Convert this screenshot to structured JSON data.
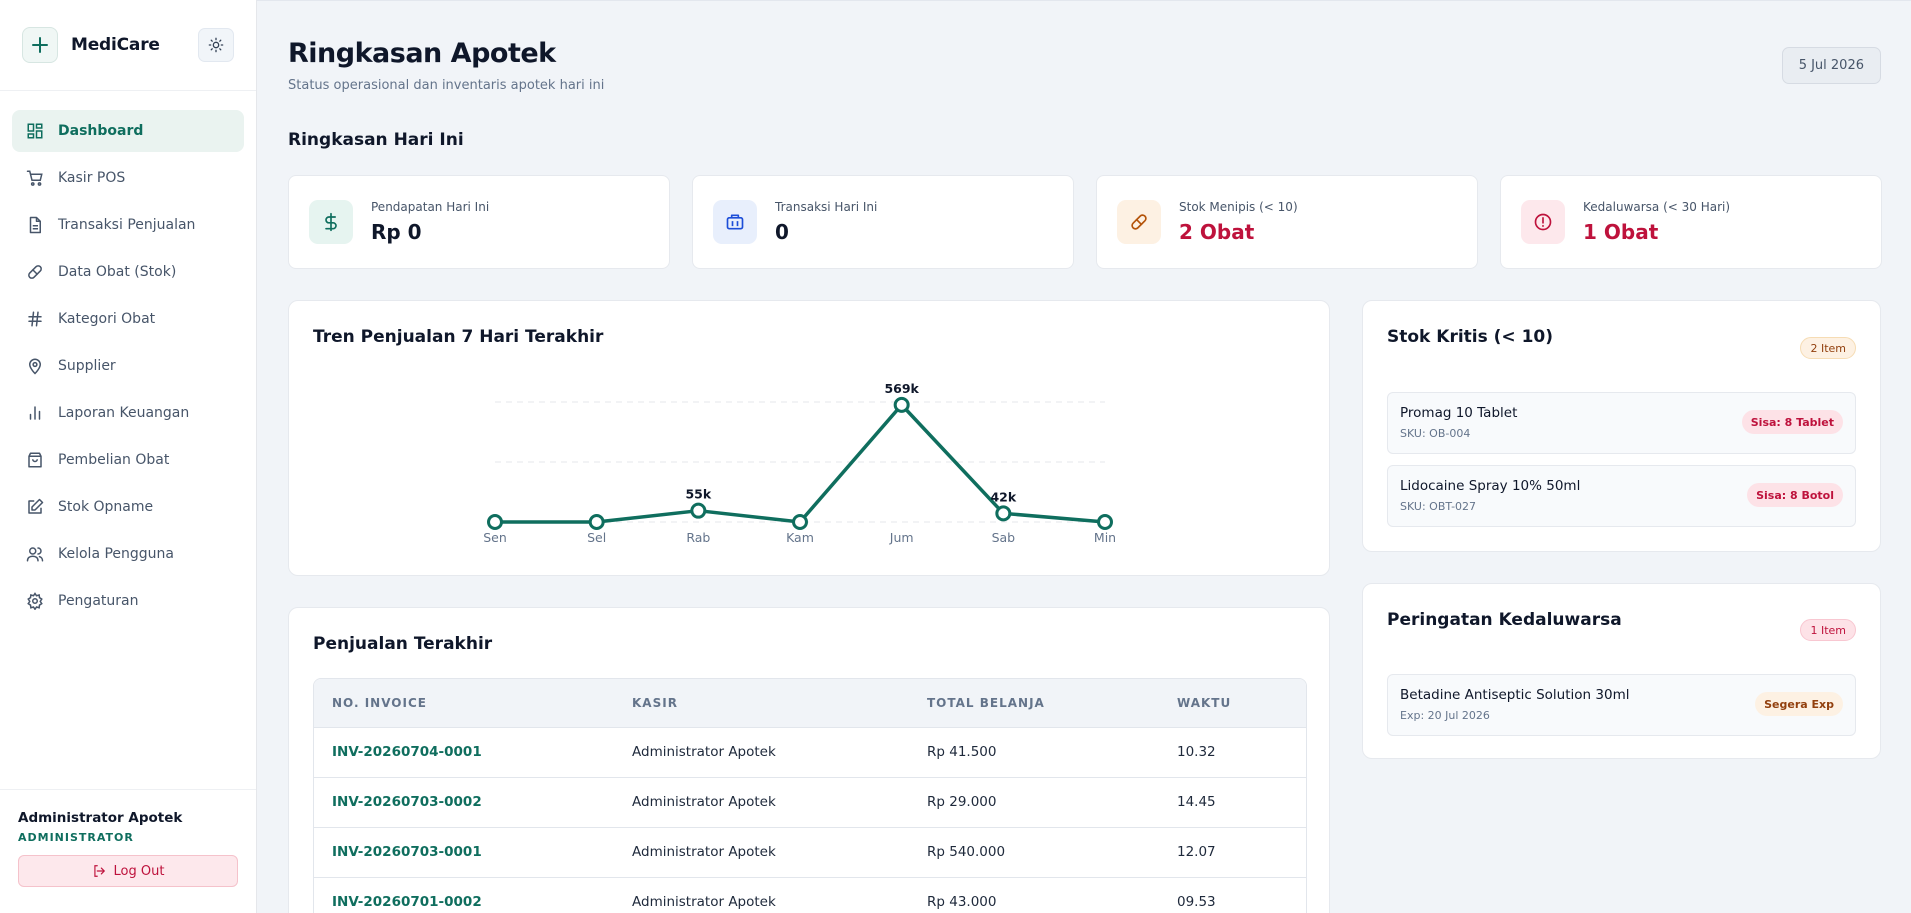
{
  "brand": {
    "name": "MediCare"
  },
  "nav": [
    {
      "label": "Dashboard",
      "icon": "dashboard-icon",
      "active": true
    },
    {
      "label": "Kasir POS",
      "icon": "cart-icon"
    },
    {
      "label": "Transaksi Penjualan",
      "icon": "document-icon"
    },
    {
      "label": "Data Obat (Stok)",
      "icon": "pill-icon"
    },
    {
      "label": "Kategori Obat",
      "icon": "hash-icon"
    },
    {
      "label": "Supplier",
      "icon": "location-icon"
    },
    {
      "label": "Laporan Keuangan",
      "icon": "bar-chart-icon"
    },
    {
      "label": "Pembelian Obat",
      "icon": "shopping-bag-icon"
    },
    {
      "label": "Stok Opname",
      "icon": "edit-icon"
    },
    {
      "label": "Kelola Pengguna",
      "icon": "users-icon"
    },
    {
      "label": "Pengaturan",
      "icon": "gear-icon"
    }
  ],
  "user": {
    "name": "Administrator Apotek",
    "role": "ADMINISTRATOR",
    "logout_label": "Log Out"
  },
  "header": {
    "title": "Ringkasan Apotek",
    "subtitle": "Status operasional dan inventaris apotek hari ini",
    "date": "5 Jul 2026"
  },
  "summary": {
    "title": "Ringkasan Hari Ini",
    "stats": [
      {
        "label": "Pendapatan Hari Ini",
        "value": "Rp 0",
        "icon": "dollar-icon",
        "color": "#0f6e5e"
      },
      {
        "label": "Transaksi Hari Ini",
        "value": "0",
        "icon": "briefcase-icon",
        "color": "#1d4ed8"
      },
      {
        "label": "Stok Menipis (< 10)",
        "value": "2 Obat",
        "icon": "pill-icon",
        "color": "#be123c"
      },
      {
        "label": "Kedaluwarsa (< 30 Hari)",
        "value": "1 Obat",
        "icon": "alert-icon",
        "color": "#be123c"
      }
    ]
  },
  "chart": {
    "title": "Tren Penjualan 7 Hari Terakhir"
  },
  "chart_data": {
    "type": "line",
    "categories": [
      "Sen",
      "Sel",
      "Rab",
      "Kam",
      "Jum",
      "Sab",
      "Min"
    ],
    "values": [
      0,
      0,
      55000,
      0,
      569000,
      42000,
      0
    ],
    "data_labels": [
      "",
      "",
      "55k",
      "",
      "569k",
      "42k",
      ""
    ],
    "ylim": [
      0,
      600000
    ],
    "grid": true,
    "color": "#0f6e5e"
  },
  "critical_stock": {
    "title": "Stok Kritis (< 10)",
    "badge": "2 Item",
    "items": [
      {
        "name": "Promag 10 Tablet",
        "sku": "SKU: OB-004",
        "remaining": "Sisa: 8 Tablet"
      },
      {
        "name": "Lidocaine Spray 10% 50ml",
        "sku": "SKU: OBT-027",
        "remaining": "Sisa: 8 Botol"
      }
    ]
  },
  "expiry": {
    "title": "Peringatan Kedaluwarsa",
    "badge": "1 Item",
    "items": [
      {
        "name": "Betadine Antiseptic Solution 30ml",
        "exp": "Exp: 20 Jul 2026",
        "status": "Segera Exp"
      }
    ]
  },
  "sales": {
    "title": "Penjualan Terakhir",
    "columns": [
      "NO. INVOICE",
      "KASIR",
      "TOTAL BELANJA",
      "WAKTU"
    ],
    "rows": [
      [
        "INV-20260704-0001",
        "Administrator Apotek",
        "Rp 41.500",
        "10.32"
      ],
      [
        "INV-20260703-0002",
        "Administrator Apotek",
        "Rp 29.000",
        "14.45"
      ],
      [
        "INV-20260703-0001",
        "Administrator Apotek",
        "Rp 540.000",
        "12.07"
      ],
      [
        "INV-20260701-0002",
        "Administrator Apotek",
        "Rp 43.000",
        "09.53"
      ]
    ]
  }
}
